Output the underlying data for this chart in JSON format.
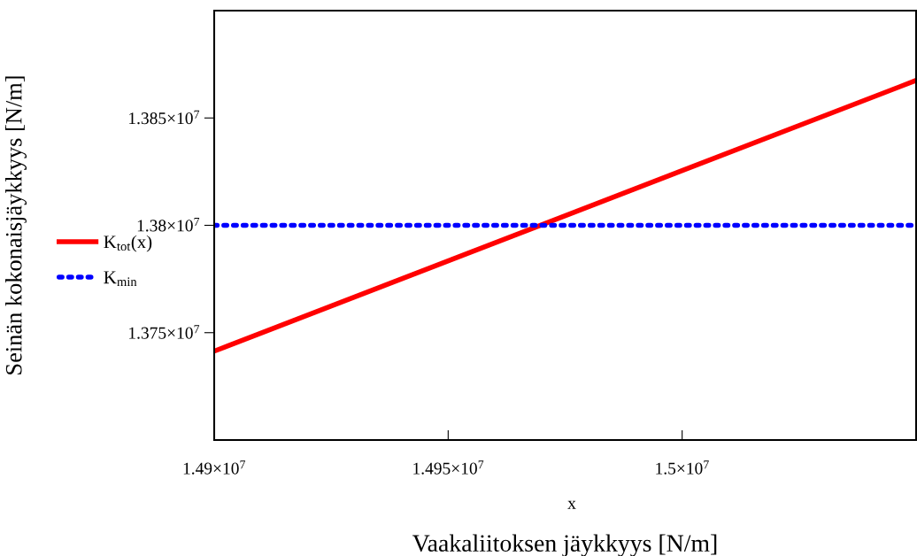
{
  "chart_data": {
    "type": "line",
    "xlabel": "Vaakaliitoksen jäykkyys [N/m]",
    "ylabel": "Seinän kokonaisjäykkyys [N/m]",
    "annotations": [
      "x"
    ],
    "series": [
      {
        "name": "K$_{tot}$(x)",
        "color": "#ff0000",
        "values": [
          13741400,
          13867500
        ],
        "line_style": "solid"
      },
      {
        "name": "K$_{min}$",
        "color": "#0000ff",
        "values": [
          13800000,
          13800000
        ],
        "line_style": "dotted"
      }
    ],
    "x": [
      14900000,
      15050000
    ],
    "xlim": [
      14900000,
      15050000
    ],
    "ylim": [
      13700000,
      13900000
    ],
    "xticks": [
      {
        "value": 14900000,
        "label": "1.49×10$^{7}$"
      },
      {
        "value": 14950000,
        "label": "1.495×10$^{7}$"
      },
      {
        "value": 15000000,
        "label": "1.5×10$^{7}$"
      }
    ],
    "yticks": [
      {
        "value": 13750000,
        "label": "1.375×10$^{7}$"
      },
      {
        "value": 13800000,
        "label": "1.38×10$^{7}$"
      },
      {
        "value": 13850000,
        "label": "1.385×10$^{7}$"
      }
    ],
    "grid": false,
    "legend": "left",
    "marker": "none"
  }
}
